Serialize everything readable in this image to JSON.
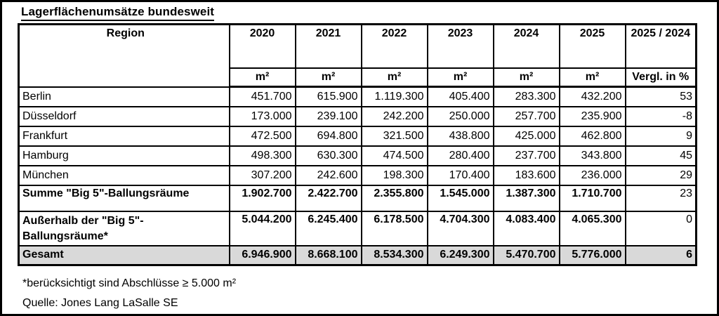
{
  "title": "Lagerflächenumsätze bundesweit",
  "colors": {
    "cell_shade": "#d9d9d9",
    "border": "#000000",
    "background": "#ffffff"
  },
  "table": {
    "region_header": "Region",
    "year_headers": [
      "2020",
      "2021",
      "2022",
      "2023",
      "2024",
      "2025"
    ],
    "compare_header": "2025 / 2024",
    "unit_label": "m²",
    "compare_unit_label": "Vergl. in %",
    "rows": [
      {
        "region": "Berlin",
        "values": [
          "451.700",
          "615.900",
          "1.119.300",
          "405.400",
          "283.300",
          "432.200"
        ],
        "compare": "53"
      },
      {
        "region": "Düsseldorf",
        "values": [
          "173.000",
          "239.100",
          "242.200",
          "250.000",
          "257.700",
          "235.900"
        ],
        "compare": "-8"
      },
      {
        "region": "Frankfurt",
        "values": [
          "472.500",
          "694.800",
          "321.500",
          "438.800",
          "425.000",
          "462.800"
        ],
        "compare": "9"
      },
      {
        "region": "Hamburg",
        "values": [
          "498.300",
          "630.300",
          "474.500",
          "280.400",
          "237.700",
          "343.800"
        ],
        "compare": "45"
      },
      {
        "region": "München",
        "values": [
          "307.200",
          "242.600",
          "198.300",
          "170.400",
          "183.600",
          "236.000"
        ],
        "compare": "29"
      },
      {
        "region": "Summe \"Big 5\"-Ballungsräume",
        "values": [
          "1.902.700",
          "2.422.700",
          "2.355.800",
          "1.545.000",
          "1.387.300",
          "1.710.700"
        ],
        "compare": "23"
      },
      {
        "region": "Außerhalb der \"Big 5\"-Ballungsräume*",
        "values": [
          "5.044.200",
          "6.245.400",
          "6.178.500",
          "4.704.300",
          "4.083.400",
          "4.065.300"
        ],
        "compare": "0"
      },
      {
        "region": "Gesamt",
        "values": [
          "6.946.900",
          "8.668.100",
          "8.534.300",
          "6.249.300",
          "5.470.700",
          "5.776.000"
        ],
        "compare": "6"
      }
    ]
  },
  "footnotes": [
    "*berücksichtigt sind Abschlüsse ≥ 5.000 m²",
    "Quelle: Jones Lang LaSalle SE"
  ]
}
